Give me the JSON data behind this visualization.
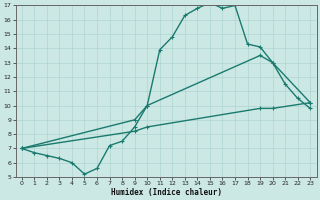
{
  "xlabel": "Humidex (Indice chaleur)",
  "bg_color": "#cce8e5",
  "grid_color": "#aed4d0",
  "line_color": "#1a7a6e",
  "line1_x": [
    0,
    1,
    2,
    3,
    4,
    5,
    6,
    7,
    8,
    9,
    10,
    11,
    12,
    13,
    14,
    15,
    16,
    17,
    18,
    19,
    20,
    21,
    22,
    23
  ],
  "line1_y": [
    7.0,
    6.7,
    6.5,
    6.3,
    6.0,
    5.2,
    5.6,
    7.2,
    7.5,
    8.5,
    10.0,
    13.9,
    14.8,
    16.3,
    16.8,
    17.2,
    16.8,
    17.0,
    14.3,
    14.1,
    13.0,
    11.5,
    10.5,
    9.8
  ],
  "line2_x": [
    0,
    9,
    10,
    19,
    20,
    23
  ],
  "line2_y": [
    7.0,
    9.0,
    10.0,
    13.5,
    13.0,
    10.2
  ],
  "line3_x": [
    0,
    9,
    10,
    19,
    20,
    23
  ],
  "line3_y": [
    7.0,
    8.2,
    8.5,
    9.8,
    9.8,
    10.2
  ],
  "ylim": [
    5,
    17
  ],
  "xlim": [
    -0.5,
    23.5
  ],
  "yticks": [
    5,
    6,
    7,
    8,
    9,
    10,
    11,
    12,
    13,
    14,
    15,
    16,
    17
  ],
  "xticks": [
    0,
    1,
    2,
    3,
    4,
    5,
    6,
    7,
    8,
    9,
    10,
    11,
    12,
    13,
    14,
    15,
    16,
    17,
    18,
    19,
    20,
    21,
    22,
    23
  ],
  "markersize": 2.5,
  "linewidth": 1.0
}
